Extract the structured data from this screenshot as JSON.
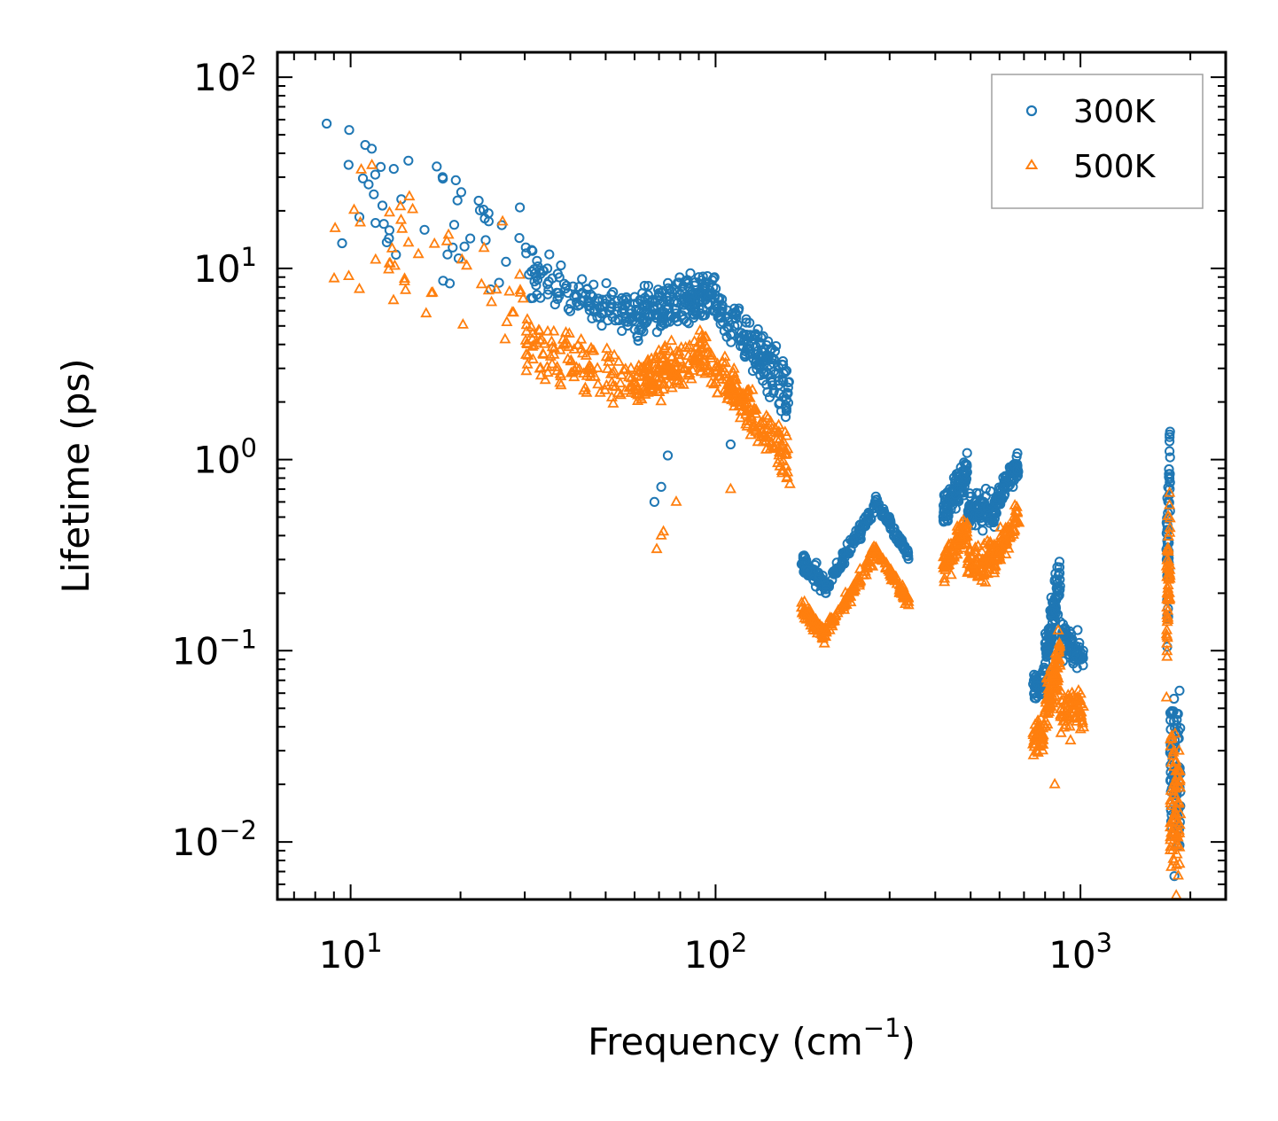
{
  "chart_data": {
    "type": "scatter",
    "title": "",
    "xlabel": "Frequency (cm",
    "xlabel_sup": "−1",
    "xlabel_close": ")",
    "ylabel": "Lifetime (ps)",
    "xscale": "log",
    "yscale": "log",
    "xlim": [
      6.3,
      2500
    ],
    "ylim": [
      0.005,
      135
    ],
    "x_ticks": [
      {
        "value": 10,
        "base": "10",
        "exp": "1"
      },
      {
        "value": 100,
        "base": "10",
        "exp": "2"
      },
      {
        "value": 1000,
        "base": "10",
        "exp": "3"
      }
    ],
    "y_ticks": [
      {
        "value": 0.01,
        "base": "10",
        "exp": "−2"
      },
      {
        "value": 0.1,
        "base": "10",
        "exp": "−1"
      },
      {
        "value": 1,
        "base": "10",
        "exp": "0"
      },
      {
        "value": 10,
        "base": "10",
        "exp": "1"
      },
      {
        "value": 100,
        "base": "10",
        "exp": "2"
      }
    ],
    "legend": {
      "position": "top-right",
      "entries": [
        {
          "label": "300K",
          "marker": "circle",
          "color": "#1f77b4"
        },
        {
          "label": "500K",
          "marker": "triangle",
          "color": "#ff7f0e"
        }
      ]
    },
    "series": [
      {
        "name": "300K",
        "marker": "circle",
        "color": "#1f77b4",
        "clusters": [
          {
            "x": [
              8.5,
              30
            ],
            "y_start": [
              60,
              15
            ],
            "y_end": [
              22,
              7
            ],
            "scatter": 0.22,
            "count": 50
          },
          {
            "x": [
              30,
              60
            ],
            "y_start": [
              12,
              8
            ],
            "y_end": [
              6,
              5
            ],
            "scatter": 0.12,
            "count": 120
          },
          {
            "x": [
              60,
              95
            ],
            "y_start": [
              7,
              4.5
            ],
            "y_end": [
              9,
              6
            ],
            "scatter": 0.08,
            "count": 180
          },
          {
            "x": [
              95,
              160
            ],
            "y_start": [
              9,
              6.5
            ],
            "y_end": [
              3,
              1.6
            ],
            "scatter": 0.08,
            "count": 180
          },
          {
            "x": [
              172,
              200
            ],
            "y_start": [
              0.32,
              0.27
            ],
            "y_end": [
              0.24,
              0.19
            ],
            "scatter": 0.04,
            "count": 70
          },
          {
            "x": [
              200,
              275
            ],
            "y_start": [
              0.22,
              0.2
            ],
            "y_end": [
              0.55,
              0.62
            ],
            "scatter": 0.05,
            "count": 100
          },
          {
            "x": [
              275,
              340
            ],
            "y_start": [
              0.6,
              0.62
            ],
            "y_end": [
              0.32,
              0.3
            ],
            "scatter": 0.04,
            "count": 80
          },
          {
            "x": [
              420,
              490
            ],
            "y_start": [
              0.45,
              0.6
            ],
            "y_end": [
              0.75,
              1.0
            ],
            "scatter": 0.09,
            "count": 100
          },
          {
            "x": [
              490,
              580
            ],
            "y_start": [
              0.5,
              0.6
            ],
            "y_end": [
              0.45,
              0.65
            ],
            "scatter": 0.08,
            "count": 80
          },
          {
            "x": [
              580,
              680
            ],
            "y_start": [
              0.5,
              0.6
            ],
            "y_end": [
              0.9,
              1.1
            ],
            "scatter": 0.08,
            "count": 80
          },
          {
            "x": [
              740,
              800
            ],
            "y_start": [
              0.06,
              0.07
            ],
            "y_end": [
              0.06,
              0.08
            ],
            "scatter": 0.06,
            "count": 50
          },
          {
            "x": [
              800,
              880
            ],
            "y_start": [
              0.08,
              0.12
            ],
            "y_end": [
              0.2,
              0.3
            ],
            "scatter": 0.12,
            "count": 90
          },
          {
            "x": [
              880,
              1020
            ],
            "y_start": [
              0.1,
              0.14
            ],
            "y_end": [
              0.08,
              0.1
            ],
            "scatter": 0.1,
            "count": 70
          },
          {
            "x": [
              1720,
              1760
            ],
            "y_start": [
              0.1,
              0.5
            ],
            "y_end": [
              0.4,
              1.2
            ],
            "scatter": 0.25,
            "count": 60
          },
          {
            "x": [
              1760,
              1880
            ],
            "y_start": [
              0.012,
              0.05
            ],
            "y_end": [
              0.01,
              0.045
            ],
            "scatter": 0.25,
            "count": 80
          }
        ]
      },
      {
        "name": "500K",
        "marker": "triangle",
        "color": "#ff7f0e",
        "clusters": [
          {
            "x": [
              8.5,
              30
            ],
            "y_start": [
              35,
              8
            ],
            "y_end": [
              13,
              4.5
            ],
            "scatter": 0.22,
            "count": 50
          },
          {
            "x": [
              30,
              60
            ],
            "y_start": [
              5,
              3
            ],
            "y_end": [
              3,
              2
            ],
            "scatter": 0.14,
            "count": 120
          },
          {
            "x": [
              60,
              95
            ],
            "y_start": [
              3,
              2
            ],
            "y_end": [
              4.5,
              3
            ],
            "scatter": 0.1,
            "count": 180
          },
          {
            "x": [
              95,
              160
            ],
            "y_start": [
              4.2,
              2.8
            ],
            "y_end": [
              1.2,
              0.8
            ],
            "scatter": 0.1,
            "count": 180
          },
          {
            "x": [
              172,
              200
            ],
            "y_start": [
              0.18,
              0.16
            ],
            "y_end": [
              0.13,
              0.11
            ],
            "scatter": 0.04,
            "count": 70
          },
          {
            "x": [
              200,
              275
            ],
            "y_start": [
              0.13,
              0.12
            ],
            "y_end": [
              0.3,
              0.35
            ],
            "scatter": 0.05,
            "count": 100
          },
          {
            "x": [
              275,
              340
            ],
            "y_start": [
              0.33,
              0.34
            ],
            "y_end": [
              0.18,
              0.17
            ],
            "scatter": 0.04,
            "count": 80
          },
          {
            "x": [
              420,
              490
            ],
            "y_start": [
              0.25,
              0.3
            ],
            "y_end": [
              0.4,
              0.5
            ],
            "scatter": 0.09,
            "count": 100
          },
          {
            "x": [
              490,
              580
            ],
            "y_start": [
              0.25,
              0.32
            ],
            "y_end": [
              0.25,
              0.35
            ],
            "scatter": 0.08,
            "count": 80
          },
          {
            "x": [
              580,
              680
            ],
            "y_start": [
              0.28,
              0.33
            ],
            "y_end": [
              0.45,
              0.6
            ],
            "scatter": 0.08,
            "count": 80
          },
          {
            "x": [
              740,
              800
            ],
            "y_start": [
              0.03,
              0.04
            ],
            "y_end": [
              0.03,
              0.045
            ],
            "scatter": 0.06,
            "count": 50
          },
          {
            "x": [
              800,
              880
            ],
            "y_start": [
              0.04,
              0.06
            ],
            "y_end": [
              0.08,
              0.12
            ],
            "scatter": 0.12,
            "count": 90
          },
          {
            "x": [
              880,
              1020
            ],
            "y_start": [
              0.04,
              0.06
            ],
            "y_end": [
              0.04,
              0.06
            ],
            "scatter": 0.1,
            "count": 70
          },
          {
            "x": [
              1720,
              1760
            ],
            "y_start": [
              0.07,
              0.3
            ],
            "y_end": [
              0.25,
              0.8
            ],
            "scatter": 0.25,
            "count": 60
          },
          {
            "x": [
              1760,
              1880
            ],
            "y_start": [
              0.008,
              0.03
            ],
            "y_end": [
              0.007,
              0.028
            ],
            "scatter": 0.25,
            "count": 80
          }
        ],
        "outliers": [
          {
            "x": 69,
            "y": 0.34
          },
          {
            "x": 71,
            "y": 0.4
          },
          {
            "x": 72,
            "y": 0.42
          },
          {
            "x": 78,
            "y": 0.6
          },
          {
            "x": 110,
            "y": 0.7
          },
          {
            "x": 850,
            "y": 0.02
          }
        ]
      }
    ],
    "extra_points": {
      "300K": [
        {
          "x": 68,
          "y": 0.6
        },
        {
          "x": 71,
          "y": 0.72
        },
        {
          "x": 74,
          "y": 1.05
        },
        {
          "x": 110,
          "y": 1.2
        },
        {
          "x": 1760,
          "y": 1.4
        }
      ]
    }
  }
}
